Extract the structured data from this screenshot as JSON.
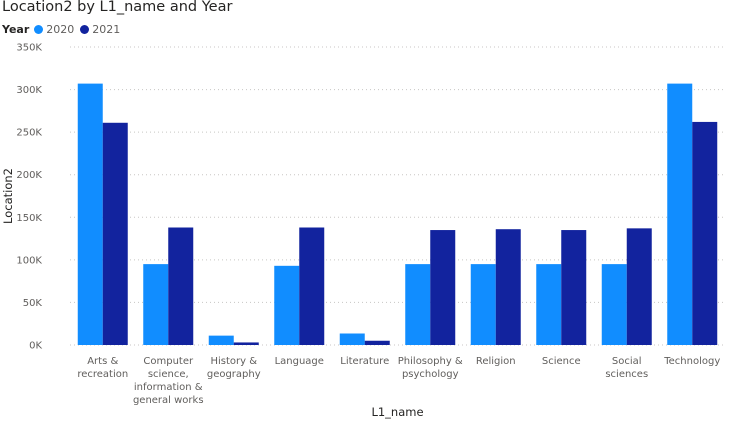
{
  "chart_data": {
    "type": "bar",
    "title": "Location2 by L1_name and Year",
    "xlabel": "L1_name",
    "ylabel": "Location2",
    "legend_title": "Year",
    "legend_position": "top-left",
    "ylim": [
      0,
      350000
    ],
    "yticks": [
      0,
      50000,
      100000,
      150000,
      200000,
      250000,
      300000,
      350000
    ],
    "ytick_labels": [
      "0K",
      "50K",
      "100K",
      "150K",
      "200K",
      "250K",
      "300K",
      "350K"
    ],
    "grid": true,
    "categories": [
      [
        "Arts &",
        "recreation"
      ],
      [
        "Computer",
        "science,",
        "information &",
        "general works"
      ],
      [
        "History &",
        "geography"
      ],
      [
        "Language"
      ],
      [
        "Literature"
      ],
      [
        "Philosophy &",
        "psychology"
      ],
      [
        "Religion"
      ],
      [
        "Science"
      ],
      [
        "Social",
        "sciences"
      ],
      [
        "Technology"
      ]
    ],
    "series": [
      {
        "name": "2020",
        "color": "#118DFF",
        "values": [
          307000,
          95000,
          11000,
          93000,
          13500,
          95000,
          95000,
          95000,
          95000,
          307000
        ]
      },
      {
        "name": "2021",
        "color": "#12239E",
        "values": [
          261000,
          138000,
          3000,
          138000,
          5000,
          135000,
          136000,
          135000,
          137000,
          262000
        ]
      }
    ]
  }
}
